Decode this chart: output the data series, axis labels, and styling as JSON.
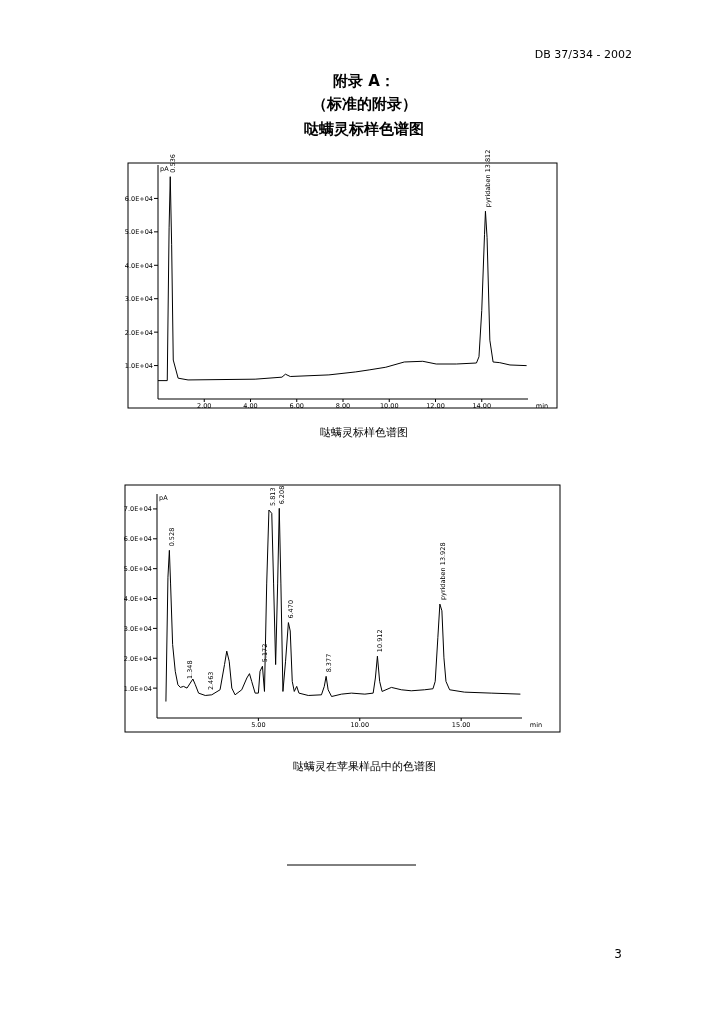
{
  "chart_data": [
    {
      "type": "line",
      "title": "附录 A：",
      "subtitle": "（标准的附录）",
      "xlabel": "min",
      "ylabel": "pA",
      "color": "#000000",
      "x": [
        0,
        0.4,
        0.48,
        0.53,
        0.59,
        0.66,
        0.87,
        1.3,
        4.2,
        5.36,
        5.51,
        5.72,
        7.39,
        8.55,
        9.13,
        9.85,
        10.65,
        11.45,
        12.03,
        12.9,
        13.77,
        13.88,
        14.0,
        14.12,
        14.16,
        14.23,
        14.35,
        14.49,
        14.78,
        15.22,
        15.94
      ],
      "values": [
        5500,
        5500,
        51200,
        66500,
        46300,
        11660,
        6230,
        5700,
        5930,
        6530,
        7420,
        6730,
        7210,
        8100,
        8700,
        9500,
        11070,
        11280,
        10470,
        10470,
        10770,
        12640,
        26500,
        49260,
        56170,
        48280,
        17600,
        11070,
        10870,
        10180,
        9980
      ],
      "xlim": [
        0,
        16
      ],
      "ylim": [
        0,
        70000
      ],
      "xticks": [
        {
          "value": 2,
          "label": "2.00"
        },
        {
          "value": 4,
          "label": "4.00"
        },
        {
          "value": 6,
          "label": "6.00"
        },
        {
          "value": 8,
          "label": "8.00"
        },
        {
          "value": 10,
          "label": "10.00"
        },
        {
          "value": 12,
          "label": "12.00"
        },
        {
          "value": 14,
          "label": "14.00"
        }
      ],
      "yticks": [
        {
          "value": 10000,
          "label": "1.0E+04"
        },
        {
          "value": 20000,
          "label": "2.0E+04"
        },
        {
          "value": 30000,
          "label": "3.0E+04"
        },
        {
          "value": 40000,
          "label": "4.0E+04"
        },
        {
          "value": 50000,
          "label": "5.0E+04"
        },
        {
          "value": 60000,
          "label": "6.0E+04"
        }
      ],
      "annotations": [
        "DB 37/334 - 2002",
        "哒螨灵标样色谱图",
        "哒螨灵标样色谱图",
        {
          "text": "0.536",
          "x": 0.53,
          "y": 66500
        },
        {
          "text": "pyridaben 13.812",
          "x": 14.16,
          "y": 56170
        }
      ]
    },
    {
      "type": "line",
      "xlabel": "min",
      "ylabel": "pA",
      "color": "#000000",
      "x": [
        0.44,
        0.54,
        0.61,
        0.67,
        0.77,
        0.9,
        1.03,
        1.15,
        1.31,
        1.48,
        1.64,
        1.77,
        1.89,
        2.05,
        2.38,
        2.7,
        3.11,
        3.33,
        3.44,
        3.56,
        3.69,
        3.85,
        4.18,
        4.43,
        4.56,
        4.67,
        4.84,
        5.0,
        5.08,
        5.2,
        5.3,
        5.41,
        5.52,
        5.66,
        5.75,
        5.85,
        5.95,
        6.03,
        6.11,
        6.21,
        6.34,
        6.48,
        6.57,
        6.67,
        6.77,
        6.89,
        7.0,
        7.46,
        8.11,
        8.25,
        8.34,
        8.44,
        8.61,
        9.1,
        9.59,
        10.25,
        10.66,
        10.77,
        10.87,
        10.98,
        11.1,
        11.56,
        12.05,
        12.54,
        13.2,
        13.61,
        13.72,
        13.85,
        13.95,
        14.05,
        14.15,
        14.25,
        14.43,
        15.16,
        16.48,
        17.92
      ],
      "values": [
        5510,
        47140,
        56140,
        44890,
        24640,
        15640,
        11140,
        10240,
        10580,
        10010,
        11700,
        13050,
        11140,
        8330,
        7540,
        7760,
        9450,
        17890,
        22390,
        19010,
        10010,
        7760,
        9450,
        13390,
        14850,
        12260,
        8330,
        8330,
        15640,
        17330,
        8890,
        44890,
        69640,
        68510,
        44890,
        17890,
        44890,
        70200,
        44890,
        8890,
        19010,
        31950,
        29140,
        12260,
        8890,
        10580,
        8330,
        7540,
        7760,
        10580,
        13950,
        9450,
        7200,
        7990,
        8330,
        7990,
        8330,
        13390,
        20700,
        12260,
        8890,
        10240,
        9450,
        9110,
        9450,
        9790,
        12260,
        26890,
        38140,
        35890,
        20140,
        12260,
        9450,
        8660,
        8330,
        7990
      ],
      "xlim": [
        0,
        18
      ],
      "ylim": [
        0,
        75000
      ],
      "xticks": [
        {
          "value": 5,
          "label": "5.00"
        },
        {
          "value": 10,
          "label": "10.00"
        },
        {
          "value": 15,
          "label": "15.00"
        }
      ],
      "yticks": [
        {
          "value": 10000,
          "label": "1.0E+04"
        },
        {
          "value": 20000,
          "label": "2.0E+04"
        },
        {
          "value": 30000,
          "label": "3.0E+04"
        },
        {
          "value": 40000,
          "label": "4.0E+04"
        },
        {
          "value": 50000,
          "label": "5.0E+04"
        },
        {
          "value": 60000,
          "label": "6.0E+04"
        },
        {
          "value": 70000,
          "label": "7.0E+04"
        }
      ],
      "annotations": [
        "哒螨灵在苹果样品中的色谱图",
        "3",
        {
          "text": "0.528",
          "x": 0.61,
          "y": 56140
        },
        {
          "text": "1.348",
          "x": 1.48,
          "y": 11700
        },
        {
          "text": "2.463",
          "x": 2.54,
          "y": 8000
        },
        {
          "text": "5.172",
          "x": 5.2,
          "y": 17330
        },
        {
          "text": "5.813",
          "x": 5.59,
          "y": 69640
        },
        {
          "text": "6.208",
          "x": 6.03,
          "y": 70200
        },
        {
          "text": "6.470",
          "x": 6.48,
          "y": 31950
        },
        {
          "text": "8.377",
          "x": 8.34,
          "y": 13950
        },
        {
          "text": "10.912",
          "x": 10.87,
          "y": 20700
        },
        {
          "text": "pyridaben 13.928",
          "x": 13.95,
          "y": 38140
        }
      ]
    }
  ]
}
